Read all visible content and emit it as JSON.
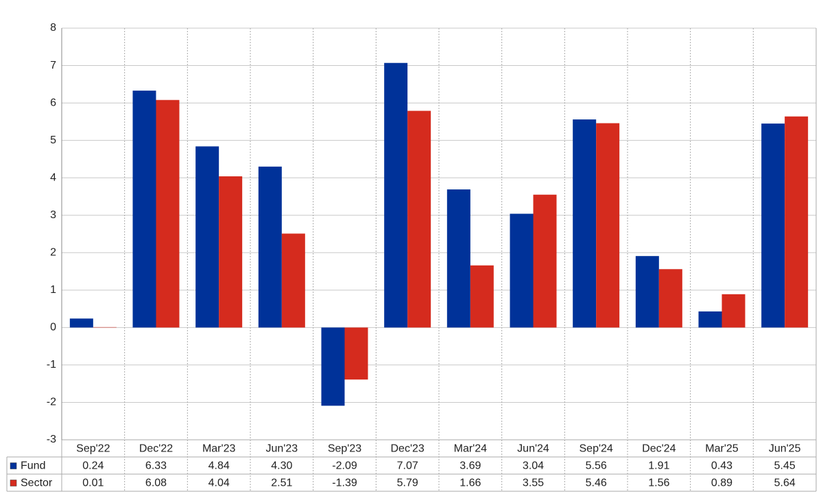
{
  "chart_data": {
    "type": "bar",
    "categories": [
      "Sep'22",
      "Dec'22",
      "Mar'23",
      "Jun'23",
      "Sep'23",
      "Dec'23",
      "Mar'24",
      "Jun'24",
      "Sep'24",
      "Dec'24",
      "Mar'25",
      "Jun'25"
    ],
    "series": [
      {
        "name": "Fund",
        "color": "#003299",
        "values": [
          0.24,
          6.33,
          4.84,
          4.3,
          -2.09,
          7.07,
          3.69,
          3.04,
          5.56,
          1.91,
          0.43,
          5.45
        ],
        "value_labels": [
          "0.24",
          "6.33",
          "4.84",
          "4.30",
          "-2.09",
          "7.07",
          "3.69",
          "3.04",
          "5.56",
          "1.91",
          "0.43",
          "5.45"
        ]
      },
      {
        "name": "Sector",
        "color": "#d52b1e",
        "values": [
          0.01,
          6.08,
          4.04,
          2.51,
          -1.39,
          5.79,
          1.66,
          3.55,
          5.46,
          1.56,
          0.89,
          5.64
        ],
        "value_labels": [
          "0.01",
          "6.08",
          "4.04",
          "2.51",
          "-1.39",
          "5.79",
          "1.66",
          "3.55",
          "5.46",
          "1.56",
          "0.89",
          "5.64"
        ]
      }
    ],
    "ylim": [
      -3,
      8
    ],
    "yticks": [
      -3,
      -2,
      -1,
      0,
      1,
      2,
      3,
      4,
      5,
      6,
      7,
      8
    ],
    "grid": true,
    "negative_label_color": "#ff0000"
  }
}
